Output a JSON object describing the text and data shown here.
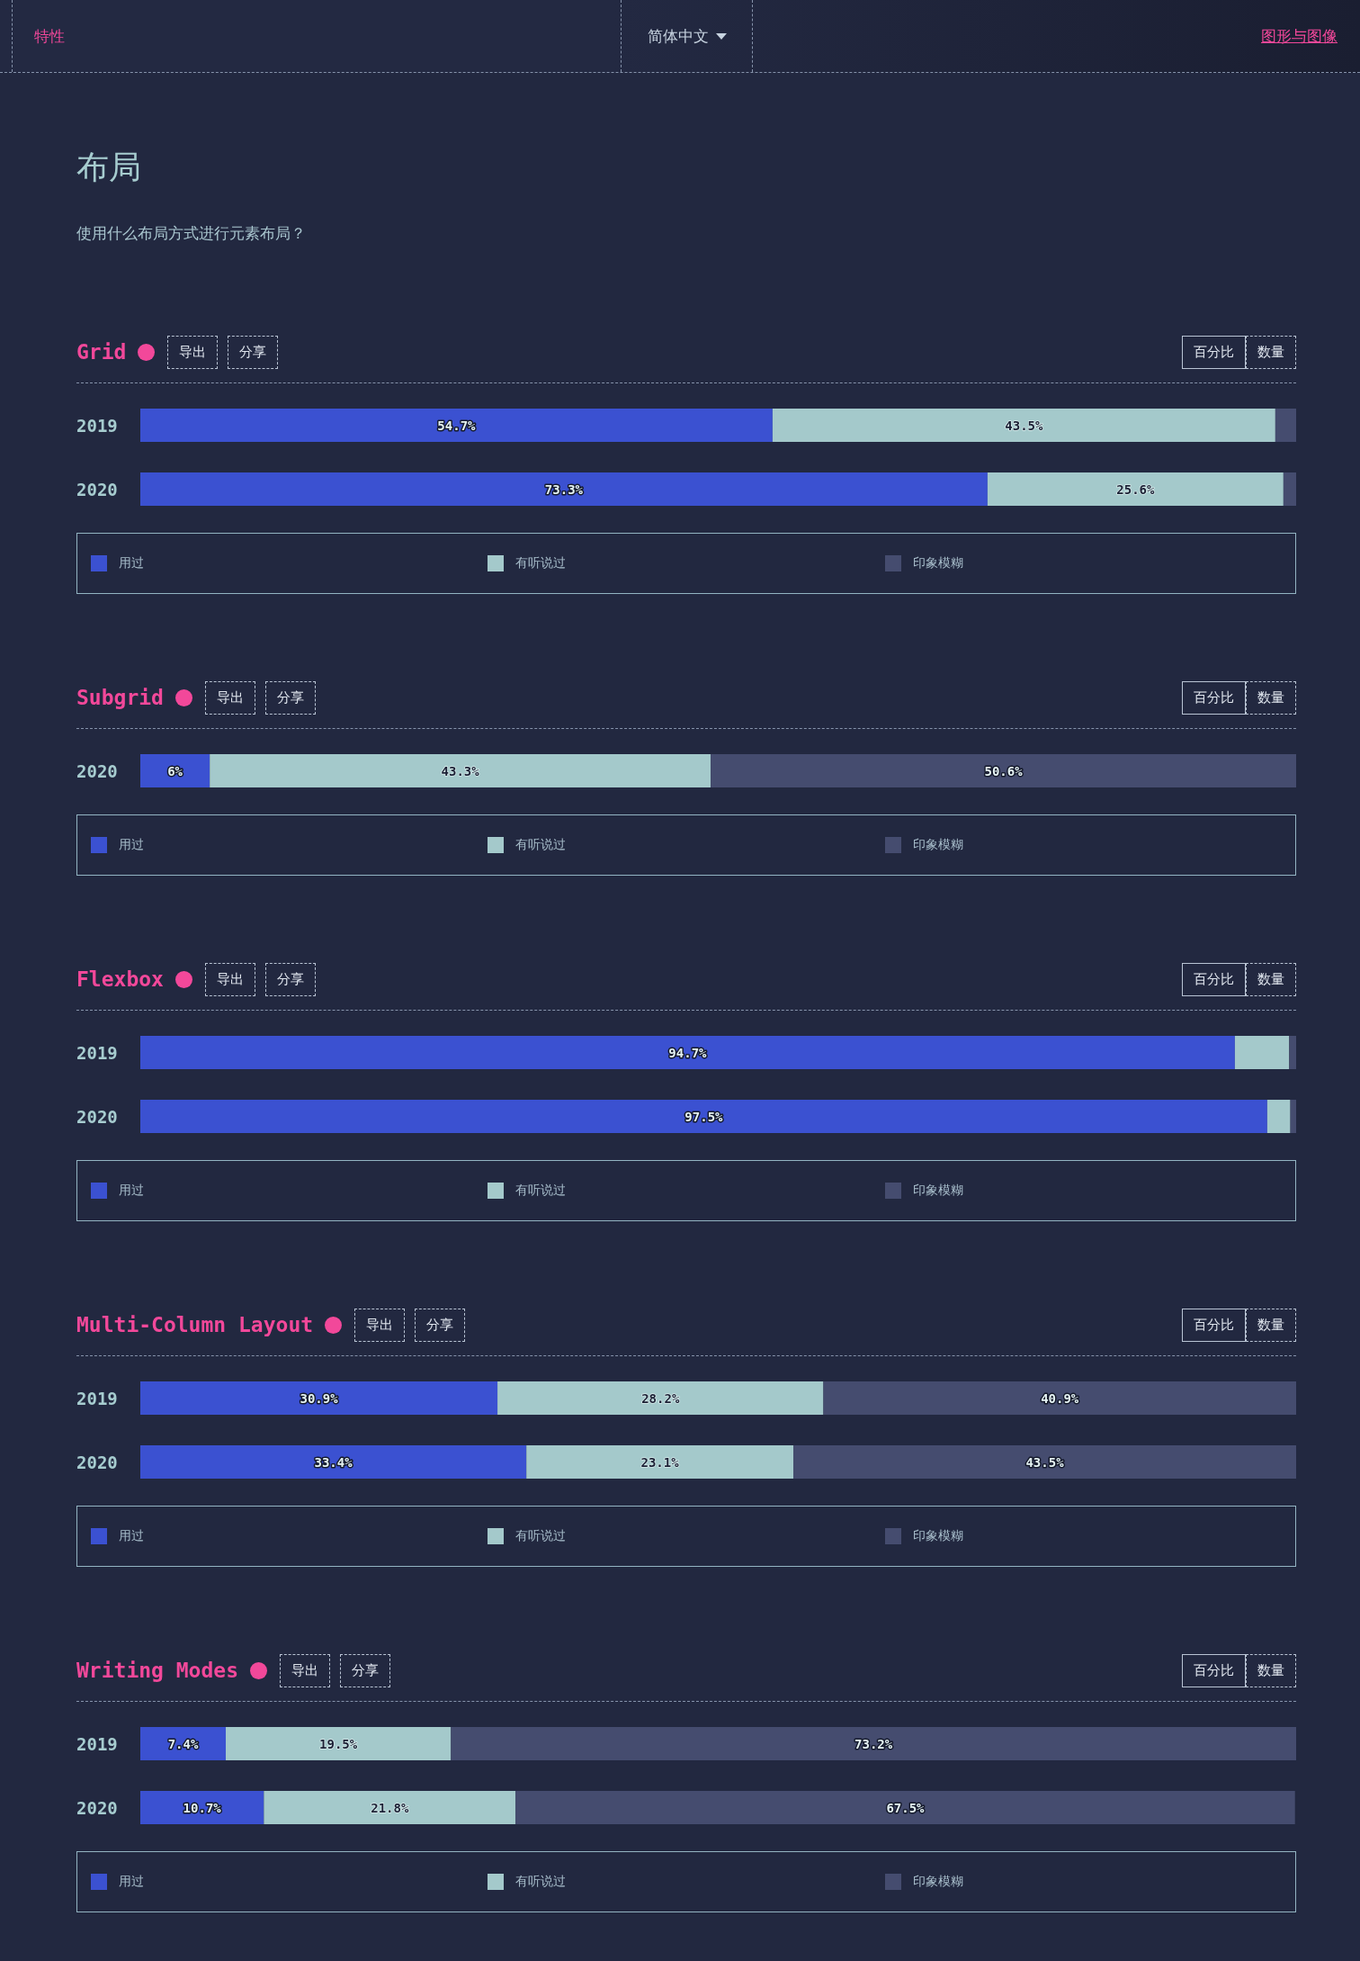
{
  "chart_data": [
    {
      "type": "other",
      "title": "布局",
      "subtitle": "使用什么布局方式进行元素布局？",
      "annotations": [
        "特性",
        "简体中文",
        "图形与图像"
      ]
    },
    {
      "type": "bar",
      "orientation": "horizontal",
      "stacked": true,
      "title": "Grid",
      "categories": [
        "2019",
        "2020"
      ],
      "series": [
        {
          "name": "用过",
          "color": "#3b51d1",
          "values": [
            54.7,
            73.3
          ],
          "value_labels": [
            "54.7%",
            "73.3%"
          ]
        },
        {
          "name": "有听说过",
          "color": "#a4c9cb",
          "values": [
            43.5,
            25.6
          ],
          "value_labels": [
            "43.5%",
            "25.6%"
          ]
        },
        {
          "name": "印象模糊",
          "color": "#454c6f",
          "values": [
            1.8,
            1.1
          ],
          "value_labels": [
            null,
            null
          ]
        }
      ],
      "legend": "bottom",
      "tick_labels": "y",
      "annotations": [
        "导出",
        "分享",
        "百分比",
        "数量"
      ]
    },
    {
      "type": "bar",
      "orientation": "horizontal",
      "stacked": true,
      "title": "Subgrid",
      "categories": [
        "2020"
      ],
      "series": [
        {
          "name": "用过",
          "color": "#3b51d1",
          "values": [
            6
          ],
          "value_labels": [
            "6%"
          ]
        },
        {
          "name": "有听说过",
          "color": "#a4c9cb",
          "values": [
            43.3
          ],
          "value_labels": [
            "43.3%"
          ]
        },
        {
          "name": "印象模糊",
          "color": "#454c6f",
          "values": [
            50.6
          ],
          "value_labels": [
            "50.6%"
          ]
        }
      ],
      "legend": "bottom",
      "tick_labels": "y",
      "annotations": [
        "导出",
        "分享",
        "百分比",
        "数量"
      ]
    },
    {
      "type": "bar",
      "orientation": "horizontal",
      "stacked": true,
      "title": "Flexbox",
      "categories": [
        "2019",
        "2020"
      ],
      "series": [
        {
          "name": "用过",
          "color": "#3b51d1",
          "values": [
            94.7,
            97.5
          ],
          "value_labels": [
            "94.7%",
            "97.5%"
          ]
        },
        {
          "name": "有听说过",
          "color": "#a4c9cb",
          "values": [
            4.7,
            2.0
          ],
          "value_labels": [
            null,
            null
          ]
        },
        {
          "name": "印象模糊",
          "color": "#454c6f",
          "values": [
            0.6,
            0.5
          ],
          "value_labels": [
            null,
            null
          ]
        }
      ],
      "legend": "bottom",
      "tick_labels": "y",
      "annotations": [
        "导出",
        "分享",
        "百分比",
        "数量"
      ]
    },
    {
      "type": "bar",
      "orientation": "horizontal",
      "stacked": true,
      "title": "Multi-Column Layout",
      "categories": [
        "2019",
        "2020"
      ],
      "series": [
        {
          "name": "用过",
          "color": "#3b51d1",
          "values": [
            30.9,
            33.4
          ],
          "value_labels": [
            "30.9%",
            "33.4%"
          ]
        },
        {
          "name": "有听说过",
          "color": "#a4c9cb",
          "values": [
            28.2,
            23.1
          ],
          "value_labels": [
            "28.2%",
            "23.1%"
          ]
        },
        {
          "name": "印象模糊",
          "color": "#454c6f",
          "values": [
            40.9,
            43.5
          ],
          "value_labels": [
            "40.9%",
            "43.5%"
          ]
        }
      ],
      "legend": "bottom",
      "tick_labels": "y",
      "annotations": [
        "导出",
        "分享",
        "百分比",
        "数量"
      ]
    },
    {
      "type": "bar",
      "orientation": "horizontal",
      "stacked": true,
      "title": "Writing Modes",
      "categories": [
        "2019",
        "2020"
      ],
      "series": [
        {
          "name": "用过",
          "color": "#3b51d1",
          "values": [
            7.4,
            10.7
          ],
          "value_labels": [
            "7.4%",
            "10.7%"
          ]
        },
        {
          "name": "有听说过",
          "color": "#a4c9cb",
          "values": [
            19.5,
            21.8
          ],
          "value_labels": [
            "19.5%",
            "21.8%"
          ]
        },
        {
          "name": "印象模糊",
          "color": "#454c6f",
          "values": [
            73.2,
            67.5
          ],
          "value_labels": [
            "73.2%",
            "67.5%"
          ]
        }
      ],
      "legend": "bottom",
      "tick_labels": "y",
      "annotations": [
        "导出",
        "分享",
        "百分比",
        "数量"
      ]
    }
  ]
}
